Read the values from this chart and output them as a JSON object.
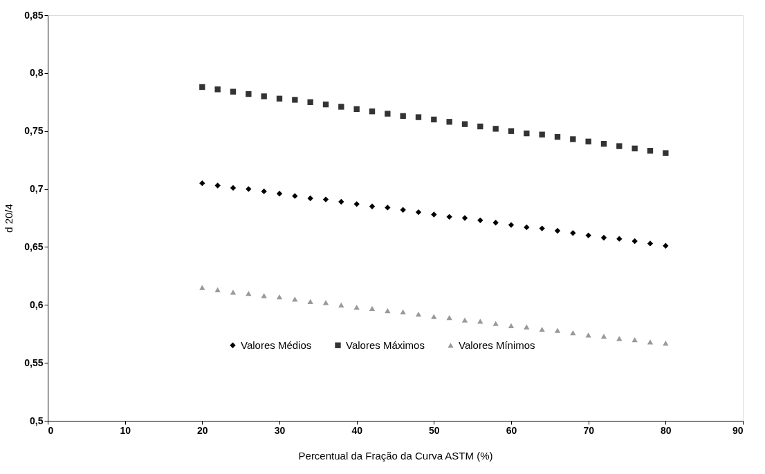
{
  "chart_data": {
    "type": "scatter",
    "xlabel": "Percentual da Fração da Curva ASTM (%)",
    "ylabel": "d 20/4",
    "x": [
      20,
      22,
      24,
      26,
      28,
      30,
      32,
      34,
      36,
      38,
      40,
      42,
      44,
      46,
      48,
      50,
      52,
      54,
      56,
      58,
      60,
      62,
      64,
      66,
      68,
      70,
      72,
      74,
      76,
      78,
      80
    ],
    "series": [
      {
        "name": "Valores Médios",
        "color": "#000000",
        "marker": "diamond",
        "values": [
          0.705,
          0.703,
          0.701,
          0.7,
          0.698,
          0.696,
          0.694,
          0.692,
          0.691,
          0.689,
          0.687,
          0.685,
          0.684,
          0.682,
          0.68,
          0.678,
          0.676,
          0.675,
          0.673,
          0.671,
          0.669,
          0.667,
          0.666,
          0.664,
          0.662,
          0.66,
          0.658,
          0.657,
          0.655,
          0.653,
          0.651
        ]
      },
      {
        "name": "Valores Máximos",
        "color": "#333333",
        "marker": "square",
        "values": [
          0.788,
          0.786,
          0.784,
          0.782,
          0.78,
          0.778,
          0.777,
          0.775,
          0.773,
          0.771,
          0.769,
          0.767,
          0.765,
          0.763,
          0.762,
          0.76,
          0.758,
          0.756,
          0.754,
          0.752,
          0.75,
          0.748,
          0.747,
          0.745,
          0.743,
          0.741,
          0.739,
          0.737,
          0.735,
          0.733,
          0.731
        ]
      },
      {
        "name": "Valores Mínimos",
        "color": "#999999",
        "marker": "triangle",
        "values": [
          0.615,
          0.613,
          0.611,
          0.61,
          0.608,
          0.607,
          0.605,
          0.603,
          0.602,
          0.6,
          0.598,
          0.597,
          0.595,
          0.594,
          0.592,
          0.59,
          0.589,
          0.587,
          0.586,
          0.584,
          0.582,
          0.581,
          0.579,
          0.578,
          0.576,
          0.574,
          0.573,
          0.571,
          0.57,
          0.568,
          0.567
        ]
      }
    ],
    "xlim": [
      0,
      90
    ],
    "xticks": [
      0,
      10,
      20,
      30,
      40,
      50,
      60,
      70,
      80,
      90
    ],
    "ylim": [
      0.5,
      0.85
    ],
    "yticks": [
      {
        "value": 0.5,
        "label": "0,5"
      },
      {
        "value": 0.55,
        "label": "0,55"
      },
      {
        "value": 0.6,
        "label": "0,6"
      },
      {
        "value": 0.65,
        "label": "0,65"
      },
      {
        "value": 0.7,
        "label": "0,7"
      },
      {
        "value": 0.75,
        "label": "0,75"
      },
      {
        "value": 0.8,
        "label": "0,8"
      },
      {
        "value": 0.85,
        "label": "0,85"
      }
    ],
    "grid": false,
    "legend": "bottom"
  }
}
